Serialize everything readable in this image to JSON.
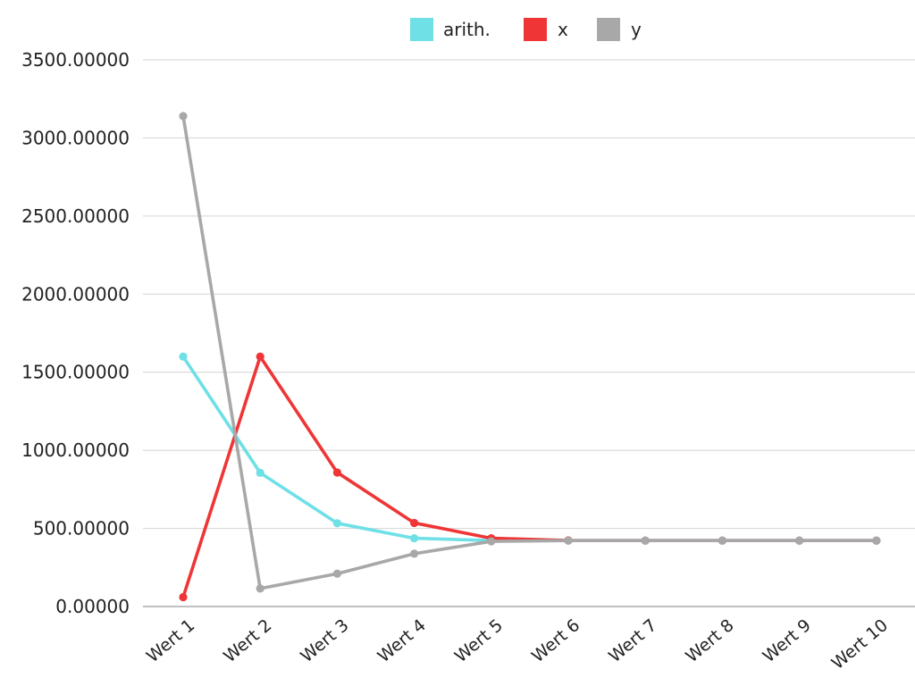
{
  "chart_data": {
    "type": "line",
    "title": "",
    "xlabel": "",
    "ylabel": "",
    "categories": [
      "Wert 1",
      "Wert 2",
      "Wert 3",
      "Wert 4",
      "Wert 5",
      "Wert 6",
      "Wert 7",
      "Wert 8",
      "Wert 9",
      "Wert 10"
    ],
    "ylim": [
      0,
      3500
    ],
    "yticks": [
      0,
      500,
      1000,
      1500,
      2000,
      2500,
      3000,
      3500
    ],
    "ytick_labels": [
      "0.00000",
      "500.00000",
      "1000.00000",
      "1500.00000",
      "2000.00000",
      "2500.00000",
      "3000.00000",
      "3500.00000"
    ],
    "grid": true,
    "legend_position": "top-center",
    "series": [
      {
        "name": "arith.",
        "color": "#6ee0e6",
        "values": [
          1600,
          856,
          533,
          437,
          422,
          422,
          422,
          422,
          422,
          422
        ]
      },
      {
        "name": "x",
        "color": "#ef3535",
        "values": [
          60,
          1600,
          858,
          535,
          437,
          423,
          422,
          422,
          422,
          422
        ]
      },
      {
        "name": "y",
        "color": "#a8a8a8",
        "values": [
          3140,
          115,
          210,
          338,
          417,
          422,
          422,
          422,
          422,
          422
        ]
      }
    ]
  }
}
